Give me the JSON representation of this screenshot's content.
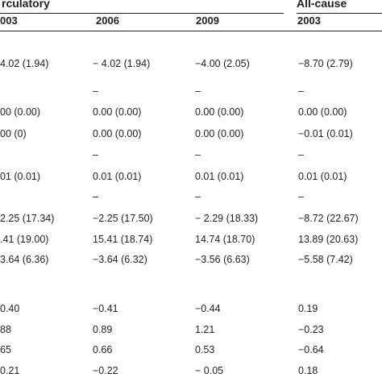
{
  "header": {
    "groups": [
      {
        "label": "rculatory"
      },
      {
        "label": "All-cause"
      }
    ],
    "years": [
      "003",
      "2006",
      "2009",
      "2003"
    ]
  },
  "rows": [
    [
      "4.02 (1.94)",
      "− 4.02 (1.94)",
      "−4.00 (2.05)",
      "−8.70 (2.79)"
    ],
    [
      "",
      "–",
      "–",
      "–"
    ],
    [
      "00 (0.00)",
      "0.00 (0.00)",
      "0.00 (0.00)",
      "0.00 (0.00)"
    ],
    [
      "00 (0)",
      "0.00 (0.00)",
      "0.00 (0.00)",
      "−0.01 (0.01)"
    ],
    [
      "",
      "–",
      "–",
      "–"
    ],
    [
      "01 (0.01)",
      "0.01 (0.01)",
      "0.01 (0.01)",
      "0.01 (0.01)"
    ],
    [
      "",
      "–",
      "–",
      "–"
    ],
    [
      "2.25 (17.34)",
      "−2.25 (17.50)",
      "− 2.29 (18.33)",
      "−8.72 (22.67)"
    ],
    [
      ".41 (19.00)",
      "15.41 (18.74)",
      "14.74 (18.70)",
      "13.89 (20.63)"
    ],
    [
      "3.64 (6.36)",
      "−3.64 (6.32)",
      "−3.56 (6.63)",
      "−5.58 (7.42)"
    ],
    [
      "",
      "",
      "",
      ""
    ],
    [
      "0.40",
      "−0.41",
      "−0.44",
      "0.19"
    ],
    [
      "88",
      "0.89",
      "1.21",
      "−0.23"
    ],
    [
      "65",
      "0.66",
      "0.53",
      "−0.64"
    ],
    [
      "0.21",
      "−0.22",
      "− 0.05",
      "0.18"
    ]
  ]
}
